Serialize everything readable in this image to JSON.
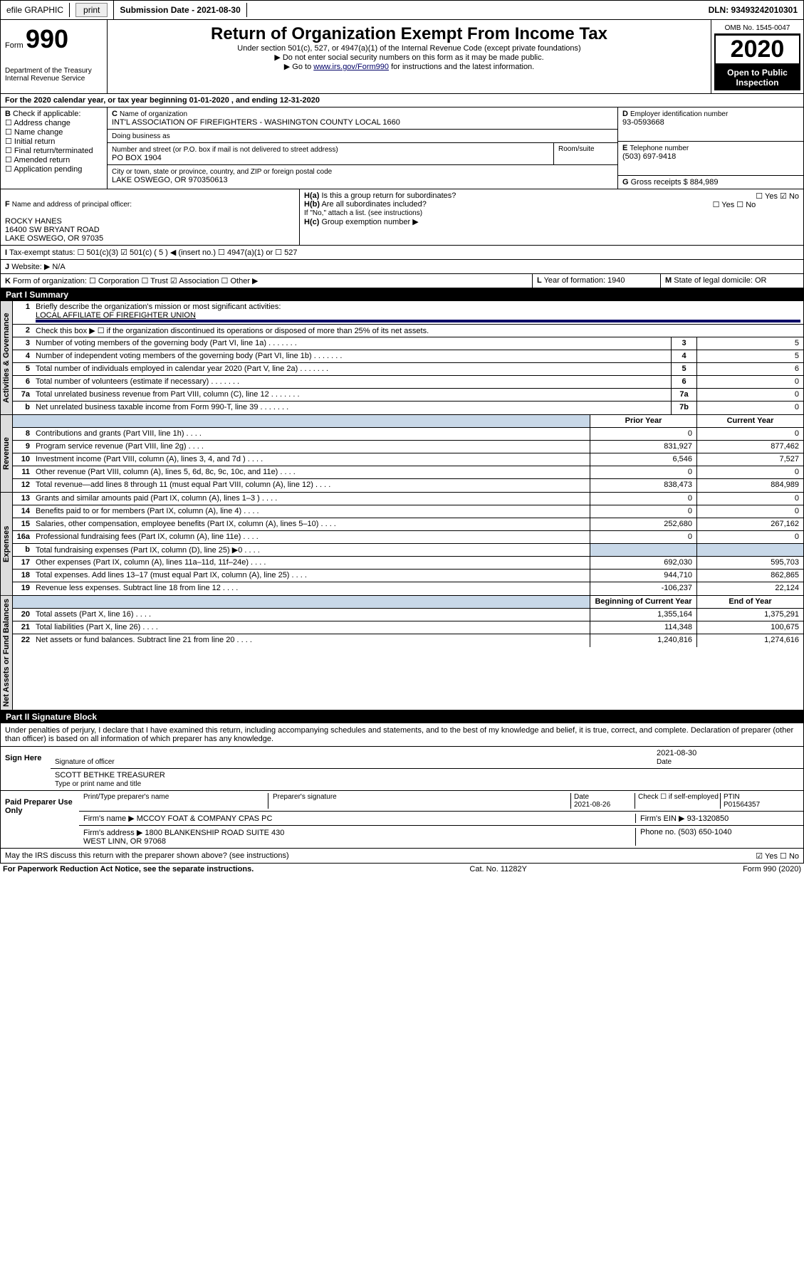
{
  "top": {
    "efile": "efile GRAPHIC",
    "print": "print",
    "subdate_lbl": "Submission Date - 2021-08-30",
    "dln_lbl": "DLN: 93493242010301"
  },
  "hdr": {
    "form_lbl": "Form",
    "form_no": "990",
    "dept": "Department of the Treasury\nInternal Revenue Service",
    "title": "Return of Organization Exempt From Income Tax",
    "sub1": "Under section 501(c), 527, or 4947(a)(1) of the Internal Revenue Code (except private foundations)",
    "sub2": "▶ Do not enter social security numbers on this form as it may be made public.",
    "sub3_pre": "▶ Go to ",
    "sub3_link": "www.irs.gov/Form990",
    "sub3_post": " for instructions and the latest information.",
    "omb": "OMB No. 1545-0047",
    "year": "2020",
    "open": "Open to Public Inspection"
  },
  "a": {
    "line": "For the 2020 calendar year, or tax year beginning 01-01-2020    , and ending 12-31-2020",
    "b_lbl": "Check if applicable:",
    "b_opts": [
      "Address change",
      "Name change",
      "Initial return",
      "Final return/terminated",
      "Amended return",
      "Application pending"
    ],
    "c_name_lbl": "Name of organization",
    "c_name": "INT'L ASSOCIATION OF FIREFIGHTERS - WASHINGTON COUNTY LOCAL 1660",
    "dba_lbl": "Doing business as",
    "addr_lbl": "Number and street (or P.O. box if mail is not delivered to street address)",
    "addr": "PO BOX 1904",
    "room_lbl": "Room/suite",
    "city_lbl": "City or town, state or province, country, and ZIP or foreign postal code",
    "city": "LAKE OSWEGO, OR   970350613",
    "d_lbl": "Employer identification number",
    "d_ein": "93-0593668",
    "e_lbl": "Telephone number",
    "e_tel": "(503) 697-9418",
    "g_lbl": "Gross receipts $ 884,989",
    "f_lbl": "Name and address of principal officer:",
    "f_name": "ROCKY HANES\n16400 SW BRYANT ROAD\nLAKE OSWEGO, OR   97035",
    "ha_lbl": "Is this a group return for subordinates?",
    "ha_yes": "Yes",
    "ha_no": "No",
    "hb_lbl": "Are all subordinates included?",
    "hc_lbl": "If \"No,\" attach a list. (see instructions)",
    "hc2_lbl": "Group exemption number ▶",
    "tax_lbl": "Tax-exempt status:",
    "tax_501c3": "501(c)(3)",
    "tax_501c": "501(c) ( 5 ) ◀ (insert no.)",
    "tax_4947": "4947(a)(1) or",
    "tax_527": "527",
    "j_lbl": "Website: ▶",
    "j_val": "N/A",
    "k_lbl": "Form of organization:",
    "k_opts": [
      "Corporation",
      "Trust",
      "Association",
      "Other ▶"
    ],
    "l_lbl": "Year of formation: 1940",
    "m_lbl": "State of legal domicile: OR"
  },
  "p1": {
    "title": "Part I     Summary",
    "q1_lbl": "Briefly describe the organization's mission or most significant activities:",
    "q1_val": "LOCAL AFFILIATE OF FIREFIGHTER UNION",
    "q2": "Check this box ▶ ☐  if the organization discontinued its operations or disposed of more than 25% of its net assets.",
    "rows_gov": [
      {
        "n": "3",
        "d": "Number of voting members of the governing body (Part VI, line 1a)",
        "b": "3",
        "v": "5"
      },
      {
        "n": "4",
        "d": "Number of independent voting members of the governing body (Part VI, line 1b)",
        "b": "4",
        "v": "5"
      },
      {
        "n": "5",
        "d": "Total number of individuals employed in calendar year 2020 (Part V, line 2a)",
        "b": "5",
        "v": "6"
      },
      {
        "n": "6",
        "d": "Total number of volunteers (estimate if necessary)",
        "b": "6",
        "v": "0"
      },
      {
        "n": "7a",
        "d": "Total unrelated business revenue from Part VIII, column (C), line 12",
        "b": "7a",
        "v": "0"
      },
      {
        "n": "b",
        "d": "Net unrelated business taxable income from Form 990-T, line 39",
        "b": "7b",
        "v": "0"
      }
    ],
    "col_py": "Prior Year",
    "col_cy": "Current Year",
    "rows_rev": [
      {
        "n": "8",
        "d": "Contributions and grants (Part VIII, line 1h)",
        "py": "0",
        "cy": "0"
      },
      {
        "n": "9",
        "d": "Program service revenue (Part VIII, line 2g)",
        "py": "831,927",
        "cy": "877,462"
      },
      {
        "n": "10",
        "d": "Investment income (Part VIII, column (A), lines 3, 4, and 7d )",
        "py": "6,546",
        "cy": "7,527"
      },
      {
        "n": "11",
        "d": "Other revenue (Part VIII, column (A), lines 5, 6d, 8c, 9c, 10c, and 11e)",
        "py": "0",
        "cy": "0"
      },
      {
        "n": "12",
        "d": "Total revenue—add lines 8 through 11 (must equal Part VIII, column (A), line 12)",
        "py": "838,473",
        "cy": "884,989"
      }
    ],
    "rows_exp": [
      {
        "n": "13",
        "d": "Grants and similar amounts paid (Part IX, column (A), lines 1–3 )",
        "py": "0",
        "cy": "0"
      },
      {
        "n": "14",
        "d": "Benefits paid to or for members (Part IX, column (A), line 4)",
        "py": "0",
        "cy": "0"
      },
      {
        "n": "15",
        "d": "Salaries, other compensation, employee benefits (Part IX, column (A), lines 5–10)",
        "py": "252,680",
        "cy": "267,162"
      },
      {
        "n": "16a",
        "d": "Professional fundraising fees (Part IX, column (A), line 11e)",
        "py": "0",
        "cy": "0"
      },
      {
        "n": "b",
        "d": "Total fundraising expenses (Part IX, column (D), line 25) ▶0",
        "py": "",
        "cy": "",
        "shade": true
      },
      {
        "n": "17",
        "d": "Other expenses (Part IX, column (A), lines 11a–11d, 11f–24e)",
        "py": "692,030",
        "cy": "595,703"
      },
      {
        "n": "18",
        "d": "Total expenses. Add lines 13–17 (must equal Part IX, column (A), line 25)",
        "py": "944,710",
        "cy": "862,865"
      },
      {
        "n": "19",
        "d": "Revenue less expenses. Subtract line 18 from line 12",
        "py": "-106,237",
        "cy": "22,124"
      }
    ],
    "col_boy": "Beginning of Current Year",
    "col_eoy": "End of Year",
    "rows_na": [
      {
        "n": "20",
        "d": "Total assets (Part X, line 16)",
        "py": "1,355,164",
        "cy": "1,375,291"
      },
      {
        "n": "21",
        "d": "Total liabilities (Part X, line 26)",
        "py": "114,348",
        "cy": "100,675"
      },
      {
        "n": "22",
        "d": "Net assets or fund balances. Subtract line 21 from line 20",
        "py": "1,240,816",
        "cy": "1,274,616"
      }
    ],
    "tab_gov": "Activities & Governance",
    "tab_rev": "Revenue",
    "tab_exp": "Expenses",
    "tab_na": "Net Assets or Fund Balances"
  },
  "p2": {
    "title": "Part II     Signature Block",
    "perjury": "Under penalties of perjury, I declare that I have examined this return, including accompanying schedules and statements, and to the best of my knowledge and belief, it is true, correct, and complete. Declaration of preparer (other than officer) is based on all information of which preparer has any knowledge.",
    "sign_here": "Sign Here",
    "sig_off": "Signature of officer",
    "sig_date": "2021-08-30",
    "sig_date_lbl": "Date",
    "typed": "SCOTT BETHKE  TREASURER",
    "typed_lbl": "Type or print name and title",
    "paid": "Paid Preparer Use Only",
    "pp_name_lbl": "Print/Type preparer's name",
    "pp_sig_lbl": "Preparer's signature",
    "pp_date_lbl": "Date",
    "pp_date": "2021-08-26",
    "pp_chk": "Check ☐ if self-employed",
    "ptin_lbl": "PTIN",
    "ptin": "P01564357",
    "firm_lbl": "Firm's name    ▶",
    "firm": "MCCOY FOAT & COMPANY CPAS PC",
    "fein_lbl": "Firm's EIN ▶",
    "fein": "93-1320850",
    "faddr_lbl": "Firm's address ▶",
    "faddr": "1800 BLANKENSHIP ROAD SUITE 430\nWEST LINN, OR   97068",
    "fphone_lbl": "Phone no.",
    "fphone": "(503) 650-1040",
    "discuss": "May the IRS discuss this return with the preparer shown above? (see instructions)",
    "yes": "Yes",
    "no": "No"
  },
  "foot": {
    "l": "For Paperwork Reduction Act Notice, see the separate instructions.",
    "c": "Cat. No. 11282Y",
    "r": "Form 990 (2020)"
  }
}
